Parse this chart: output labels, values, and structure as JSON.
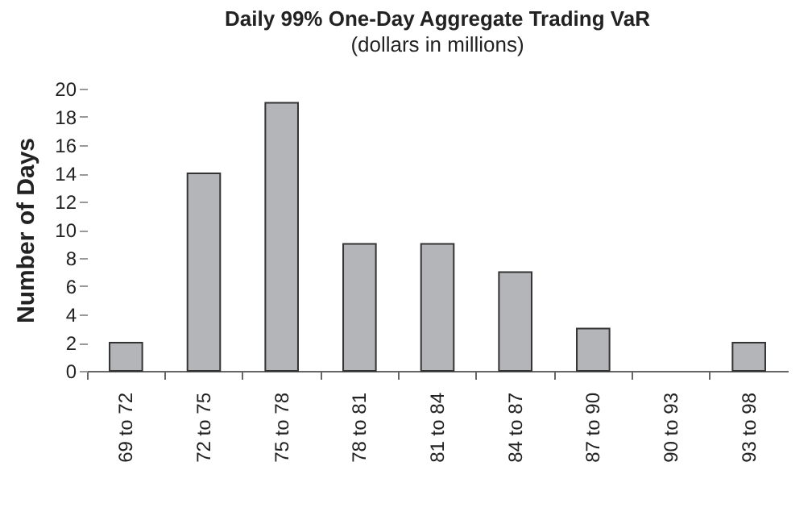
{
  "chart_data": {
    "type": "bar",
    "title": "Daily 99% One-Day Aggregate Trading VaR",
    "subtitle": "(dollars in millions)",
    "ylabel": "Number of Days",
    "categories": [
      "69 to 72",
      "72 to 75",
      "75 to 78",
      "78 to 81",
      "81 to 84",
      "84 to 87",
      "87 to 90",
      "90 to 93",
      "93 to 98"
    ],
    "values": [
      2,
      14,
      19,
      9,
      9,
      7,
      3,
      0,
      2
    ],
    "color": "#b4b5b8",
    "ylim": [
      0,
      20
    ],
    "yticks": [
      0,
      2,
      4,
      6,
      8,
      10,
      12,
      14,
      16,
      18,
      20
    ],
    "grid": false
  }
}
